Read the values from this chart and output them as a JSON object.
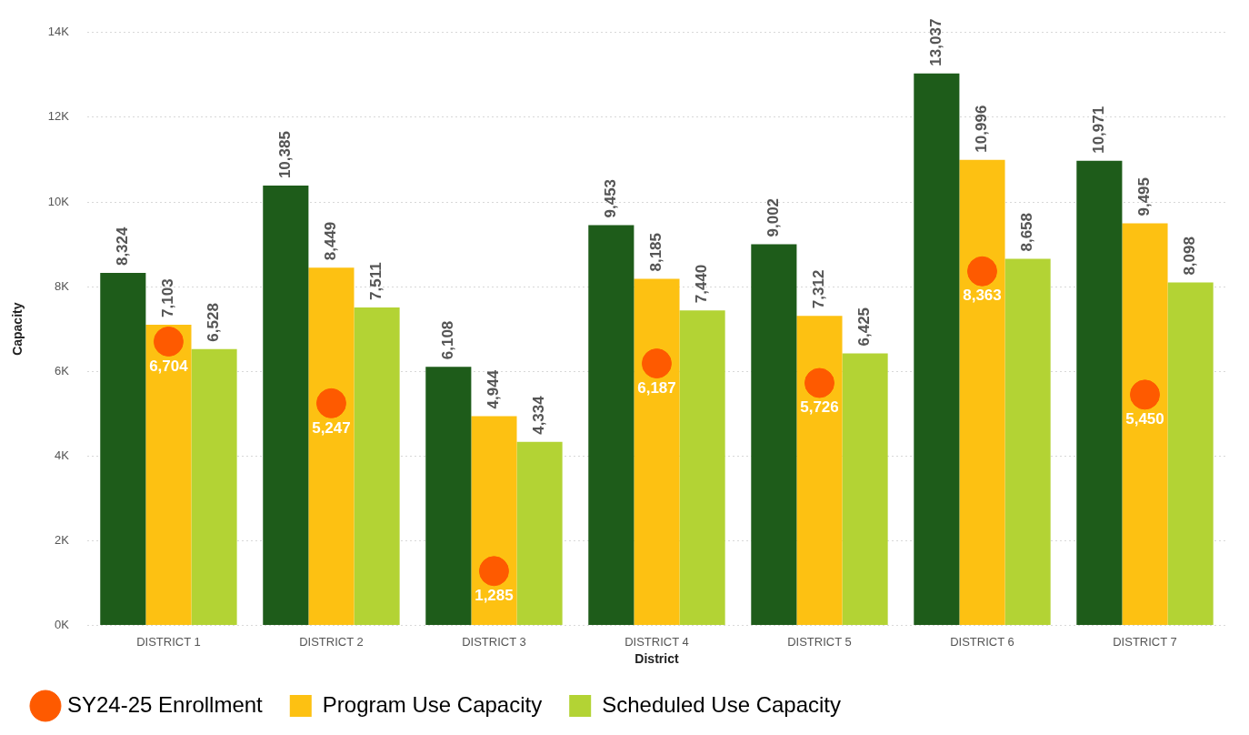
{
  "chart_data": {
    "type": "bar",
    "xlabel": "District",
    "ylabel": "Capacity",
    "categories": [
      "DISTRICT 1",
      "DISTRICT 2",
      "DISTRICT 3",
      "DISTRICT 4",
      "DISTRICT 5",
      "DISTRICT 6",
      "DISTRICT 7"
    ],
    "series": [
      {
        "color": "#1e5c1a",
        "values": [
          8324,
          10385,
          6108,
          9453,
          9002,
          13037,
          10971
        ],
        "value_labels": [
          "8,324",
          "10,385",
          "6,108",
          "9,453",
          "9,002",
          "13,037",
          "10,971"
        ]
      },
      {
        "name": "Program Use Capacity",
        "color": "#fdc112",
        "values": [
          7103,
          8449,
          4944,
          8185,
          7312,
          10996,
          9495
        ],
        "value_labels": [
          "7,103",
          "8,449",
          "4,944",
          "8,185",
          "7,312",
          "10,996",
          "9,495"
        ]
      },
      {
        "name": "Scheduled Use Capacity",
        "color": "#b3d334",
        "values": [
          6528,
          7511,
          4334,
          7440,
          6425,
          8658,
          8098
        ],
        "value_labels": [
          "6,528",
          "7,511",
          "4,334",
          "7,440",
          "6,425",
          "8,658",
          "8,098"
        ]
      },
      {
        "name": "SY24-25 Enrollment",
        "type": "scatter",
        "color": "#fe5a00",
        "x": [
          "DISTRICT 1",
          "DISTRICT 2",
          "DISTRICT 3",
          "DISTRICT 4",
          "DISTRICT 5",
          "DISTRICT 6",
          "DISTRICT 7"
        ],
        "values": [
          6704,
          5247,
          1285,
          6187,
          5726,
          8363,
          5450
        ],
        "value_labels": [
          "6,704",
          "5,247",
          "1,285",
          "6,187",
          "5,726",
          "8,363",
          "5,450"
        ]
      }
    ],
    "ylim": [
      0,
      14000
    ],
    "yticks": [
      {
        "value": 0,
        "label": "0K"
      },
      {
        "value": 2000,
        "label": "2K"
      },
      {
        "value": 4000,
        "label": "4K"
      },
      {
        "value": 6000,
        "label": "6K"
      },
      {
        "value": 8000,
        "label": "8K"
      },
      {
        "value": 10000,
        "label": "10K"
      },
      {
        "value": 12000,
        "label": "12K"
      },
      {
        "value": 14000,
        "label": "14K"
      }
    ],
    "grid": "y",
    "legend": "bottom",
    "marker": "circle"
  }
}
